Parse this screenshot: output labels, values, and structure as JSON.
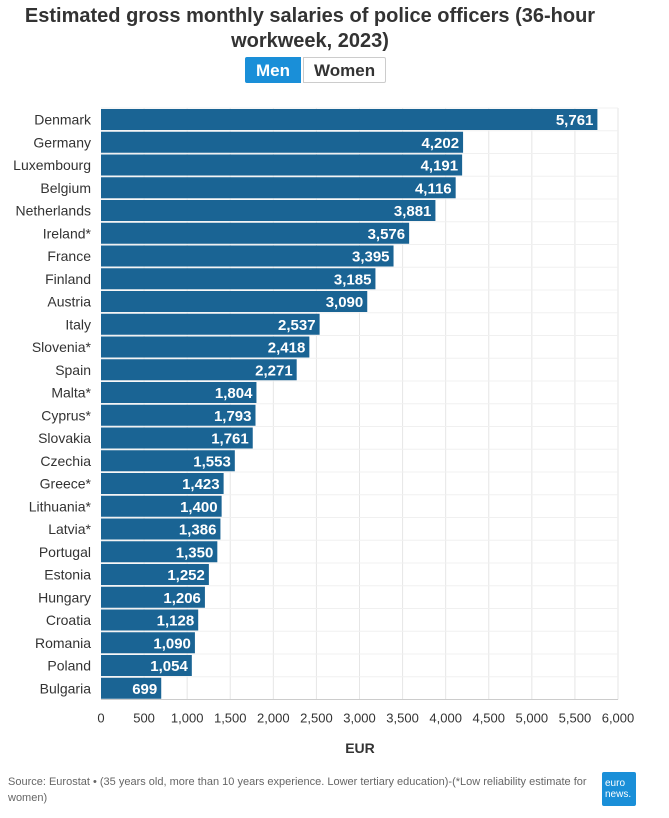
{
  "chart_data": {
    "type": "bar",
    "orientation": "horizontal",
    "title": "Estimated gross monthly salaries of police officers (36-hour workweek, 2023)",
    "xlabel": "EUR",
    "ylabel": "",
    "xlim": [
      0,
      6000
    ],
    "xticks": [
      0,
      500,
      1000,
      1500,
      2000,
      2500,
      3000,
      3500,
      4000,
      4500,
      5000,
      5500,
      6000
    ],
    "xtick_labels": [
      "0",
      "500",
      "1,000",
      "1,500",
      "2,000",
      "2,500",
      "3,000",
      "3,500",
      "4,000",
      "4,500",
      "5,000",
      "5,500",
      "6,000"
    ],
    "grid": true,
    "categories": [
      "Denmark",
      "Germany",
      "Luxembourg",
      "Belgium",
      "Netherlands",
      "Ireland*",
      "France",
      "Finland",
      "Austria",
      "Italy",
      "Slovenia*",
      "Spain",
      "Malta*",
      "Cyprus*",
      "Slovakia",
      "Czechia",
      "Greece*",
      "Lithuania*",
      "Latvia*",
      "Portugal",
      "Estonia",
      "Hungary",
      "Croatia",
      "Romania",
      "Poland",
      "Bulgaria"
    ],
    "values": [
      5761,
      4202,
      4191,
      4116,
      3881,
      3576,
      3395,
      3185,
      3090,
      2537,
      2418,
      2271,
      1804,
      1793,
      1761,
      1553,
      1423,
      1400,
      1386,
      1350,
      1252,
      1206,
      1128,
      1090,
      1054,
      699
    ],
    "value_labels": [
      "5,761",
      "4,202",
      "4,191",
      "4,116",
      "3,881",
      "3,576",
      "3,395",
      "3,185",
      "3,090",
      "2,537",
      "2,418",
      "2,271",
      "1,804",
      "1,793",
      "1,761",
      "1,553",
      "1,423",
      "1,400",
      "1,386",
      "1,350",
      "1,252",
      "1,206",
      "1,128",
      "1,090",
      "1,054",
      "699"
    ],
    "bar_color": "#1a6494"
  },
  "toggle": {
    "men_label": "Men",
    "women_label": "Women"
  },
  "source": "Source: Eurostat • (35 years old, more than 10 years experience. Lower tertiary education)-(*Low reliability estimate for women)",
  "logo": {
    "line1": "euro",
    "line2": "news."
  }
}
